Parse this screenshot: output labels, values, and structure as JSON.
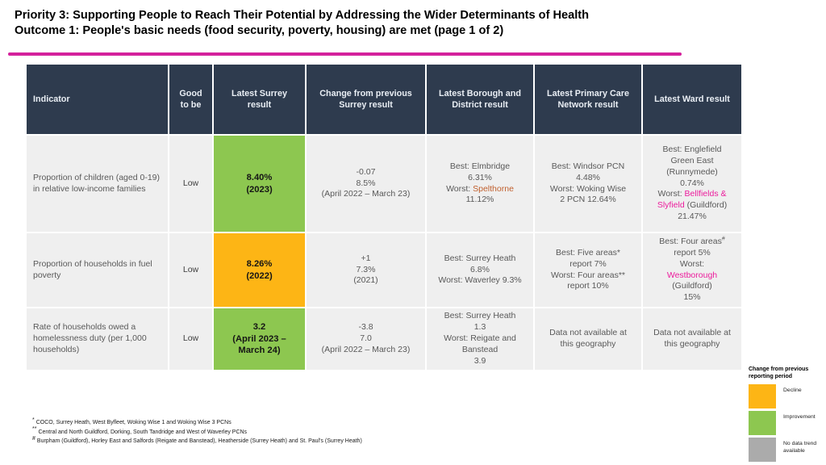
{
  "slide": {
    "title_line1": "Priority 3: Supporting People to Reach Their Potential by Addressing the Wider Determinants of Health",
    "title_line2": "Outcome 1: People's basic needs (food security, poverty, housing) are met  (page 1 of 2)"
  },
  "colors": {
    "accent_rule_pink": "#D4219C",
    "header_navy": "#2E3B4E",
    "cell_gray": "#EFEFEF",
    "improvement_green": "#8DC750",
    "decline_amber": "#FDB515",
    "no_data_gray": "#ABABAB",
    "highlight_magenta": "#EC1C9C",
    "highlight_orange": "#C05F2D"
  },
  "table": {
    "headers": [
      "Indicator",
      "Good to be",
      "Latest Surrey result",
      "Change from previous Surrey result",
      "Latest Borough and District result",
      "Latest Primary Care Network result",
      "Latest Ward result"
    ],
    "rows": [
      {
        "indicator": "Proportion of children (aged 0-19) in relative low-income families",
        "good_to_be": "Low",
        "latest": {
          "status": "improvement",
          "lines": [
            "8.40%",
            "(2023)"
          ]
        },
        "change": {
          "lines": [
            "-0.07",
            "8.5%",
            "(April 2022 – March 23)"
          ]
        },
        "borough": {
          "lines": [
            "Best: Elmbridge",
            "6.31%",
            [
              {
                "t": "Worst: "
              },
              {
                "t": "Spelthorne",
                "c": "orange"
              }
            ],
            "11.12%"
          ]
        },
        "pcn": {
          "lines": [
            "Best: Windsor PCN",
            "4.48%",
            "Worst:  Woking Wise",
            "2 PCN 12.64%"
          ]
        },
        "ward": {
          "lines": [
            "Best: Englefield",
            "Green East",
            "(Runnymede)",
            "0.74%",
            [
              {
                "t": "Worst: "
              },
              {
                "t": "Bellfields &",
                "c": "magenta"
              }
            ],
            [
              {
                "t": "Slyfield",
                "c": "magenta"
              },
              {
                "t": " (Guildford)"
              }
            ],
            "21.47%"
          ]
        }
      },
      {
        "indicator": "Proportion of households in fuel poverty",
        "good_to_be": "Low",
        "latest": {
          "status": "decline",
          "lines": [
            "8.26%",
            "(2022)"
          ]
        },
        "change": {
          "lines": [
            "+1",
            "7.3%",
            "(2021)"
          ]
        },
        "borough": {
          "lines": [
            "Best: Surrey Heath",
            "6.8%",
            "Worst: Waverley 9.3%"
          ]
        },
        "pcn": {
          "lines": [
            "Best: Five areas*",
            "report 7%",
            "Worst: Four areas**",
            "report 10%"
          ]
        },
        "ward": {
          "lines": [
            [
              {
                "t": "Best: Four areas"
              },
              {
                "t": "#",
                "sup": true
              }
            ],
            "report 5%",
            "Worst:",
            [
              {
                "t": "Westborough",
                "c": "magenta"
              }
            ],
            "(Guildford)",
            "15%"
          ]
        }
      },
      {
        "indicator": "Rate of households owed a homelessness duty (per 1,000 households)",
        "good_to_be": "Low",
        "latest": {
          "status": "improvement",
          "lines": [
            "3.2",
            "(April 2023 –",
            "March 24)"
          ]
        },
        "change": {
          "lines": [
            "-3.8",
            "7.0",
            "(April 2022 – March 23)"
          ]
        },
        "borough": {
          "lines": [
            "Best: Surrey Heath",
            "1.3",
            "Worst: Reigate and",
            "Banstead",
            "3.9"
          ]
        },
        "pcn": {
          "lines": [
            "Data not available at",
            "this geography"
          ]
        },
        "ward": {
          "lines": [
            "Data not available at",
            "this geography"
          ]
        }
      }
    ]
  },
  "legend": {
    "title": "Change from previous reporting period",
    "items": [
      {
        "label": "Decline",
        "color": "#FDB515",
        "status": "decline"
      },
      {
        "label": "Improvement",
        "color": "#8DC750",
        "status": "improvement"
      },
      {
        "label": "No data trend available",
        "color": "#ABABAB",
        "status": "nodata"
      }
    ]
  },
  "footnotes": [
    {
      "marker": "*",
      "text": "COCO, Surrey Heath, West Byfleet, Woking Wise 1 and Woking Wise 3 PCNs"
    },
    {
      "marker": "**",
      "text": "Central and North Guildford, Dorking, South Tandridge and West of Waverley PCNs"
    },
    {
      "marker": "#",
      "text": "Burpham (Guildford), Horley East and Salfords (Reigate and Banstead), Heatherside (Surrey Heath) and St. Paul's (Surrey Heath)"
    }
  ]
}
